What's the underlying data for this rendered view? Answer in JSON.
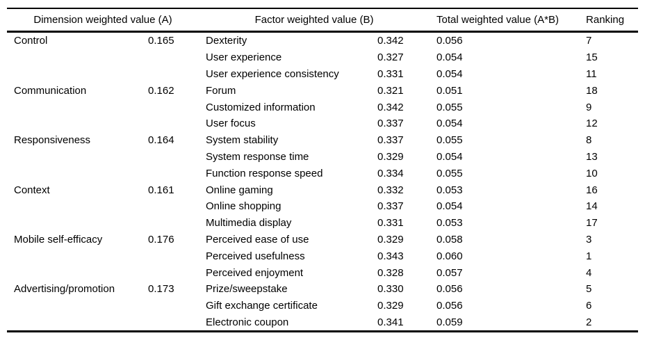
{
  "colors": {
    "background": "#ffffff",
    "text": "#000000",
    "rule": "#000000"
  },
  "table": {
    "headers": {
      "dimension": "Dimension weighted value (A)",
      "factor": "Factor weighted value (B)",
      "total": "Total weighted value (A*B)",
      "ranking": "Ranking"
    },
    "groups": [
      {
        "dimension": "Control",
        "value": "0.165",
        "factors": [
          {
            "name": "Dexterity",
            "b": "0.342",
            "total": "0.056",
            "rank": "7"
          },
          {
            "name": "User experience",
            "b": "0.327",
            "total": "0.054",
            "rank": "15"
          },
          {
            "name": "User experience consistency",
            "b": "0.331",
            "total": "0.054",
            "rank": "11"
          }
        ]
      },
      {
        "dimension": "Communication",
        "value": "0.162",
        "factors": [
          {
            "name": "Forum",
            "b": "0.321",
            "total": "0.051",
            "rank": "18"
          },
          {
            "name": "Customized information",
            "b": "0.342",
            "total": "0.055",
            "rank": "9"
          },
          {
            "name": "User focus",
            "b": "0.337",
            "total": "0.054",
            "rank": "12"
          }
        ]
      },
      {
        "dimension": "Responsiveness",
        "value": "0.164",
        "factors": [
          {
            "name": "System stability",
            "b": "0.337",
            "total": "0.055",
            "rank": "8"
          },
          {
            "name": "System response time",
            "b": "0.329",
            "total": "0.054",
            "rank": "13"
          },
          {
            "name": "Function response speed",
            "b": "0.334",
            "total": "0.055",
            "rank": "10"
          }
        ]
      },
      {
        "dimension": "Context",
        "value": "0.161",
        "factors": [
          {
            "name": "Online gaming",
            "b": "0.332",
            "total": "0.053",
            "rank": "16"
          },
          {
            "name": "Online shopping",
            "b": "0.337",
            "total": "0.054",
            "rank": "14"
          },
          {
            "name": "Multimedia display",
            "b": "0.331",
            "total": "0.053",
            "rank": "17"
          }
        ]
      },
      {
        "dimension": "Mobile self-efficacy",
        "value": "0.176",
        "factors": [
          {
            "name": "Perceived ease of use",
            "b": "0.329",
            "total": "0.058",
            "rank": "3"
          },
          {
            "name": "Perceived usefulness",
            "b": "0.343",
            "total": "0.060",
            "rank": "1"
          },
          {
            "name": "Perceived enjoyment",
            "b": "0.328",
            "total": "0.057",
            "rank": "4"
          }
        ]
      },
      {
        "dimension": "Advertising/promotion",
        "value": "0.173",
        "factors": [
          {
            "name": "Prize/sweepstake",
            "b": "0.330",
            "total": "0.056",
            "rank": "5"
          },
          {
            "name": "Gift exchange certificate",
            "b": "0.329",
            "total": "0.056",
            "rank": "6"
          },
          {
            "name": "Electronic coupon",
            "b": "0.341",
            "total": "0.059",
            "rank": "2"
          }
        ]
      }
    ]
  },
  "chart_data": {
    "type": "table",
    "title": "",
    "columns": [
      "Dimension",
      "Dimension weighted value (A)",
      "Factor",
      "Factor weighted value (B)",
      "Total weighted value (A*B)",
      "Ranking"
    ],
    "rows": [
      [
        "Control",
        0.165,
        "Dexterity",
        0.342,
        0.056,
        7
      ],
      [
        "Control",
        0.165,
        "User experience",
        0.327,
        0.054,
        15
      ],
      [
        "Control",
        0.165,
        "User experience consistency",
        0.331,
        0.054,
        11
      ],
      [
        "Communication",
        0.162,
        "Forum",
        0.321,
        0.051,
        18
      ],
      [
        "Communication",
        0.162,
        "Customized information",
        0.342,
        0.055,
        9
      ],
      [
        "Communication",
        0.162,
        "User focus",
        0.337,
        0.054,
        12
      ],
      [
        "Responsiveness",
        0.164,
        "System stability",
        0.337,
        0.055,
        8
      ],
      [
        "Responsiveness",
        0.164,
        "System response time",
        0.329,
        0.054,
        13
      ],
      [
        "Responsiveness",
        0.164,
        "Function response speed",
        0.334,
        0.055,
        10
      ],
      [
        "Context",
        0.161,
        "Online gaming",
        0.332,
        0.053,
        16
      ],
      [
        "Context",
        0.161,
        "Online shopping",
        0.337,
        0.054,
        14
      ],
      [
        "Context",
        0.161,
        "Multimedia display",
        0.331,
        0.053,
        17
      ],
      [
        "Mobile self-efficacy",
        0.176,
        "Perceived ease of use",
        0.329,
        0.058,
        3
      ],
      [
        "Mobile self-efficacy",
        0.176,
        "Perceived usefulness",
        0.343,
        0.06,
        1
      ],
      [
        "Mobile self-efficacy",
        0.176,
        "Perceived enjoyment",
        0.328,
        0.057,
        4
      ],
      [
        "Advertising/promotion",
        0.173,
        "Prize/sweepstake",
        0.33,
        0.056,
        5
      ],
      [
        "Advertising/promotion",
        0.173,
        "Gift exchange certificate",
        0.329,
        0.056,
        6
      ],
      [
        "Advertising/promotion",
        0.173,
        "Electronic coupon",
        0.341,
        0.059,
        2
      ]
    ]
  }
}
